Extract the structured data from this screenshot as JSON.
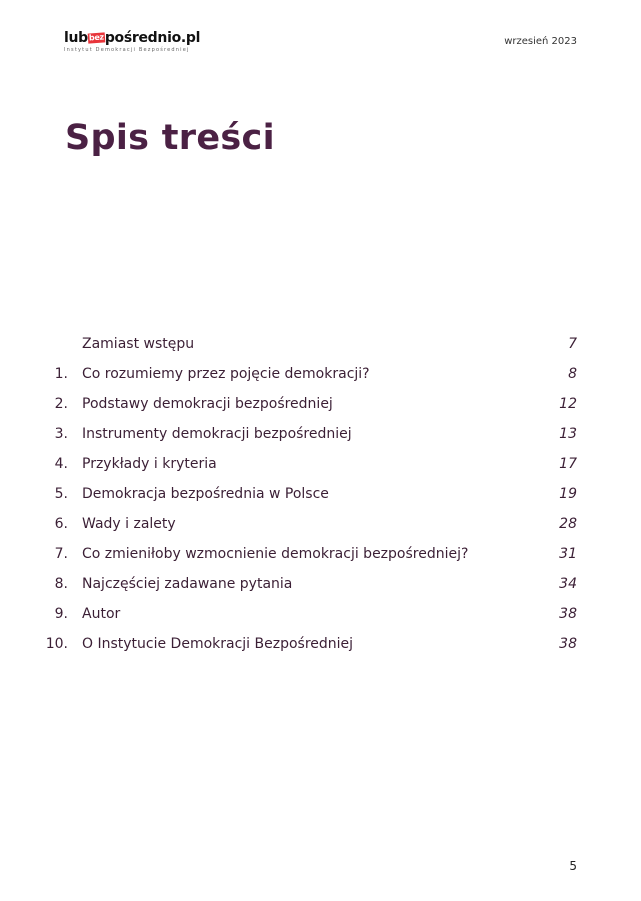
{
  "header": {
    "logo_text": "lubbezpośrednio.pl",
    "logo_prefix": "lub",
    "logo_mark": "bez",
    "logo_suffix": "pośrednio.pl",
    "logo_subtitle": "Instytut Demokracji Bezpośredniej",
    "date": "wrzesień 2023"
  },
  "title": "Spis treści",
  "toc": [
    {
      "num": "",
      "label": "Zamiast wstępu",
      "page": "7"
    },
    {
      "num": "1.",
      "label": "Co rozumiemy przez pojęcie demokracji?",
      "page": "8"
    },
    {
      "num": "2.",
      "label": "Podstawy demokracji bezpośredniej",
      "page": "12"
    },
    {
      "num": "3.",
      "label": "Instrumenty demokracji bezpośredniej",
      "page": "13"
    },
    {
      "num": "4.",
      "label": "Przykłady i kryteria",
      "page": "17"
    },
    {
      "num": "5.",
      "label": "Demokracja bezpośrednia w Polsce",
      "page": "19"
    },
    {
      "num": "6.",
      "label": "Wady i zalety",
      "page": "28"
    },
    {
      "num": "7.",
      "label": "Co zmieniłoby wzmocnienie demokracji bezpośredniej?",
      "page": "31"
    },
    {
      "num": "8.",
      "label": "Najczęściej zadawane pytania",
      "page": "34"
    },
    {
      "num": "9.",
      "label": "Autor",
      "page": "38"
    },
    {
      "num": "10.",
      "label": "O Instytucie Demokracji Bezpośredniej",
      "page": "38"
    }
  ],
  "page_number": "5",
  "colors": {
    "title": "#4b2144",
    "text": "#3b1f35",
    "logo_accent": "#e8353b"
  }
}
